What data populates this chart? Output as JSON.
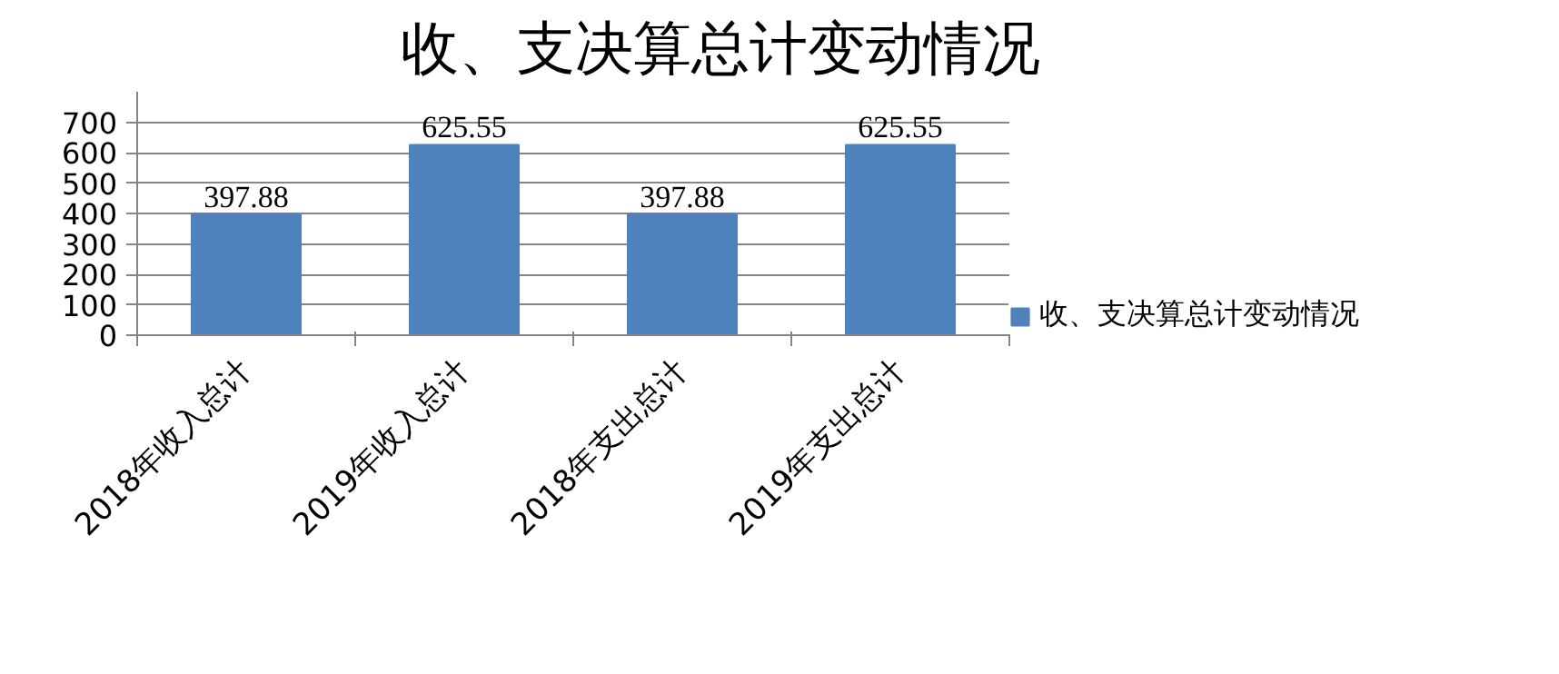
{
  "chart_data": {
    "type": "bar",
    "title": "收、支决算总计变动情况",
    "categories": [
      "2018年收入总计",
      "2019年收入总计",
      "2018年支出总计",
      "2019年支出总计"
    ],
    "series": [
      {
        "name": "收、支决算总计变动情况",
        "color": "#4f81bd",
        "values": [
          397.88,
          625.55,
          397.88,
          625.55
        ]
      }
    ],
    "ylim": [
      0,
      800
    ],
    "yticks": [
      0,
      100,
      200,
      300,
      400,
      500,
      600,
      700
    ],
    "grid": "y",
    "legend": "right",
    "data_labels": true
  }
}
